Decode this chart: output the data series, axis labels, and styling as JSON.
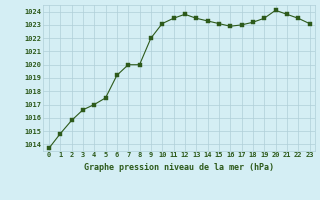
{
  "x": [
    0,
    1,
    2,
    3,
    4,
    5,
    6,
    7,
    8,
    9,
    10,
    11,
    12,
    13,
    14,
    15,
    16,
    17,
    18,
    19,
    20,
    21,
    22,
    23
  ],
  "y": [
    1013.7,
    1014.8,
    1015.8,
    1016.6,
    1017.0,
    1017.5,
    1019.2,
    1020.0,
    1020.0,
    1022.0,
    1023.1,
    1023.5,
    1023.8,
    1023.5,
    1023.3,
    1023.1,
    1022.9,
    1023.0,
    1023.2,
    1023.5,
    1024.1,
    1023.8,
    1023.5,
    1023.1
  ],
  "line_color": "#2d5a1b",
  "marker_color": "#2d5a1b",
  "bg_color": "#d4eef4",
  "grid_color": "#b0cfd8",
  "xlabel": "Graphe pression niveau de la mer (hPa)",
  "xlabel_color": "#2d5a1b",
  "tick_color": "#2d5a1b",
  "ylim_min": 1013.5,
  "ylim_max": 1024.5,
  "yticks": [
    1014,
    1015,
    1016,
    1017,
    1018,
    1019,
    1020,
    1021,
    1022,
    1023,
    1024
  ],
  "xticks": [
    0,
    1,
    2,
    3,
    4,
    5,
    6,
    7,
    8,
    9,
    10,
    11,
    12,
    13,
    14,
    15,
    16,
    17,
    18,
    19,
    20,
    21,
    22,
    23
  ]
}
